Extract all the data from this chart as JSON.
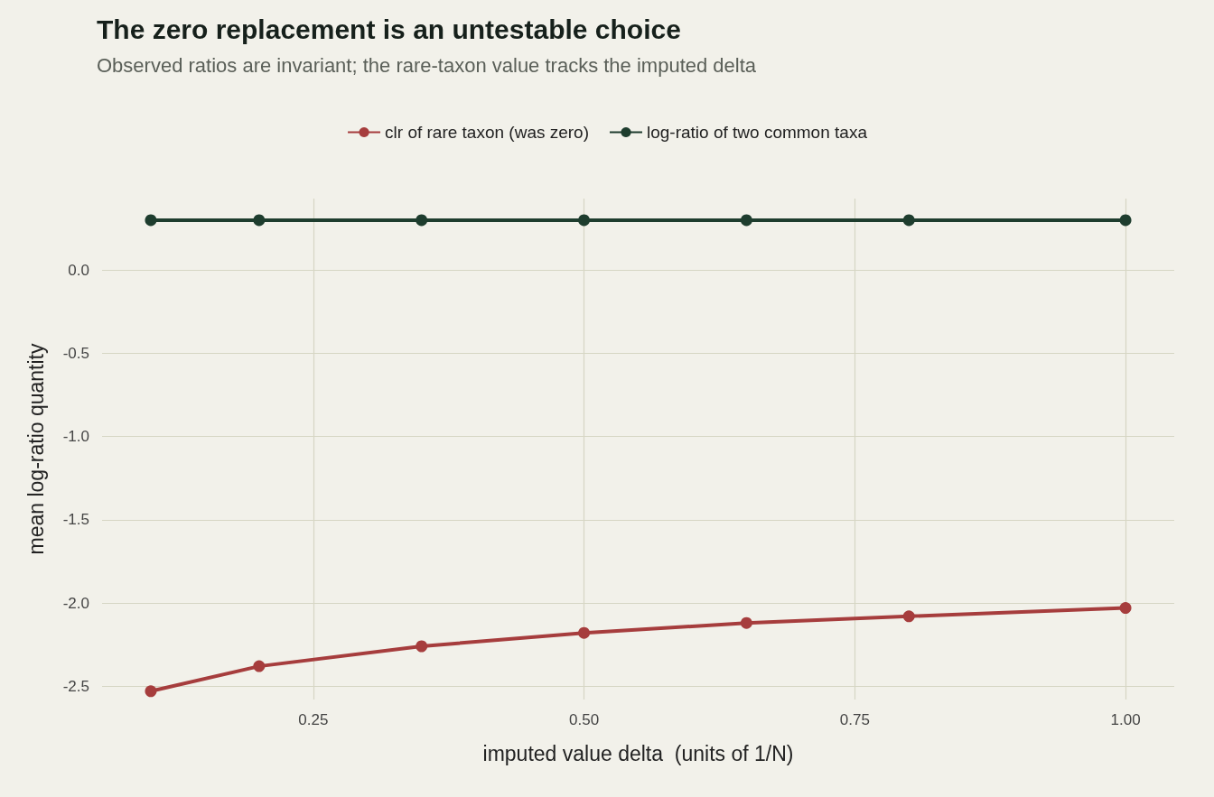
{
  "chart_data": {
    "type": "line",
    "title": "The zero replacement is an untestable choice",
    "subtitle": "Observed ratios are invariant; the rare-taxon value tracks the imputed delta",
    "xlabel": "imputed value delta  (units of 1/N)",
    "ylabel": "mean log-ratio quantity",
    "x": [
      0.1,
      0.2,
      0.35,
      0.5,
      0.65,
      0.8,
      1.0
    ],
    "series": [
      {
        "name": "clr of rare taxon (was zero)",
        "color": "#a63d3d",
        "values": [
          -2.53,
          -2.38,
          -2.26,
          -2.18,
          -2.12,
          -2.08,
          -2.03
        ]
      },
      {
        "name": "log-ratio of two common taxa",
        "color": "#1e3d2e",
        "values": [
          0.3,
          0.3,
          0.3,
          0.3,
          0.3,
          0.3,
          0.3
        ]
      }
    ],
    "xlim": [
      0.055,
      1.045
    ],
    "xticks": [
      {
        "value": 0.25,
        "label": "0.25"
      },
      {
        "value": 0.5,
        "label": "0.50"
      },
      {
        "value": 0.75,
        "label": "0.75"
      },
      {
        "value": 1.0,
        "label": "1.00"
      }
    ],
    "ylim": [
      -2.58,
      0.43
    ],
    "yticks": [
      {
        "value": -2.5,
        "label": "-2.5"
      },
      {
        "value": -2,
        "label": "-2.0"
      },
      {
        "value": -1.5,
        "label": "-1.5"
      },
      {
        "value": -1,
        "label": "-1.0"
      },
      {
        "value": -0.5,
        "label": "-0.5"
      },
      {
        "value": 0,
        "label": "0.0"
      }
    ],
    "grid": true,
    "legend": "top",
    "marker": "circle",
    "line_style": "solid"
  }
}
